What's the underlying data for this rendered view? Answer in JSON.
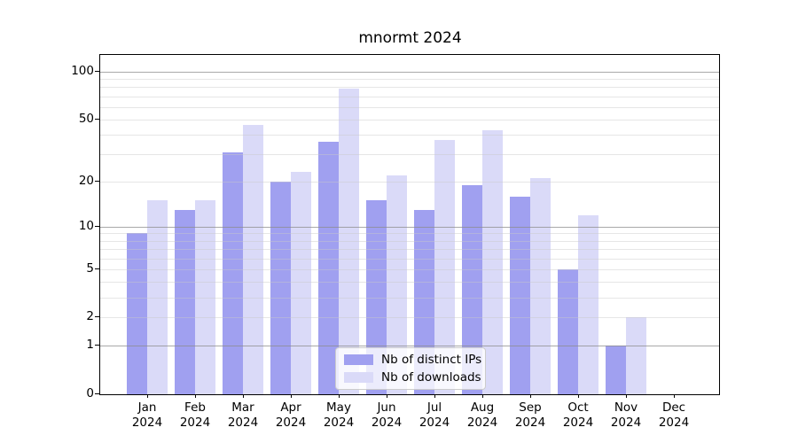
{
  "title": "mnormt 2024",
  "colors": {
    "ips_bar": "#a0a0f0",
    "downloads_bar": "#dadaf8",
    "grid_minor": "rgba(200,200,200,0.45)",
    "grid_major": "rgba(140,140,140,0.75)",
    "axis": "#000000",
    "legend_border": "#cccccc"
  },
  "chart_data": {
    "type": "bar",
    "title": "mnormt 2024",
    "categories": [
      "Jan",
      "Feb",
      "Mar",
      "Apr",
      "May",
      "Jun",
      "Jul",
      "Aug",
      "Sep",
      "Oct",
      "Nov",
      "Dec"
    ],
    "year_label": "2024",
    "series": [
      {
        "name": "Nb of distinct IPs",
        "values": [
          9,
          13,
          31,
          20,
          36,
          15,
          13,
          19,
          16,
          5,
          1,
          0
        ]
      },
      {
        "name": "Nb of downloads",
        "values": [
          15,
          15,
          46,
          23,
          78,
          22,
          37,
          43,
          21,
          12,
          2,
          0
        ]
      }
    ],
    "xlabel": "",
    "ylabel": "",
    "y_scale": "log10(1+x)",
    "ylim": [
      0,
      127.5
    ],
    "y_tick_labels": [
      0,
      1,
      2,
      5,
      10,
      20,
      50,
      100
    ],
    "y_grid_major": [
      1,
      10,
      100
    ],
    "y_grid_minor": [
      2,
      3,
      4,
      5,
      6,
      7,
      8,
      9,
      20,
      30,
      40,
      50,
      60,
      70,
      80,
      90
    ],
    "grid": true,
    "legend_position": "bottom-center"
  }
}
